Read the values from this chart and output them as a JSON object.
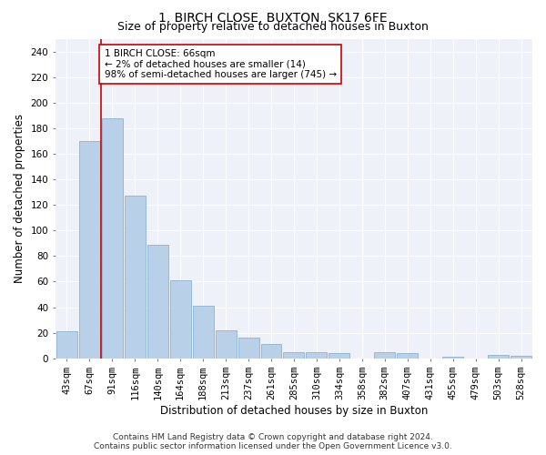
{
  "title_line1": "1, BIRCH CLOSE, BUXTON, SK17 6FE",
  "title_line2": "Size of property relative to detached houses in Buxton",
  "xlabel": "Distribution of detached houses by size in Buxton",
  "ylabel": "Number of detached properties",
  "categories": [
    "43sqm",
    "67sqm",
    "91sqm",
    "116sqm",
    "140sqm",
    "164sqm",
    "188sqm",
    "213sqm",
    "237sqm",
    "261sqm",
    "285sqm",
    "310sqm",
    "334sqm",
    "358sqm",
    "382sqm",
    "407sqm",
    "431sqm",
    "455sqm",
    "479sqm",
    "503sqm",
    "528sqm"
  ],
  "values": [
    21,
    170,
    188,
    127,
    89,
    61,
    41,
    22,
    16,
    11,
    5,
    5,
    4,
    0,
    5,
    4,
    0,
    1,
    0,
    3,
    2
  ],
  "bar_color": "#b8d0e8",
  "bar_edge_color": "#7aaacf",
  "property_line_x": 1.5,
  "annotation_text": "1 BIRCH CLOSE: 66sqm\n← 2% of detached houses are smaller (14)\n98% of semi-detached houses are larger (745) →",
  "annotation_box_color": "white",
  "annotation_box_edge_color": "#cc0000",
  "vline_color": "#cc0000",
  "ylim": [
    0,
    250
  ],
  "yticks": [
    0,
    20,
    40,
    60,
    80,
    100,
    120,
    140,
    160,
    180,
    200,
    220,
    240
  ],
  "footer_line1": "Contains HM Land Registry data © Crown copyright and database right 2024.",
  "footer_line2": "Contains public sector information licensed under the Open Government Licence v3.0.",
  "background_color": "#eef2f8",
  "title_fontsize": 10,
  "subtitle_fontsize": 9,
  "tick_fontsize": 7.5,
  "ylabel_fontsize": 8.5,
  "xlabel_fontsize": 8.5,
  "footer_fontsize": 6.5,
  "annotation_fontsize": 7.5
}
